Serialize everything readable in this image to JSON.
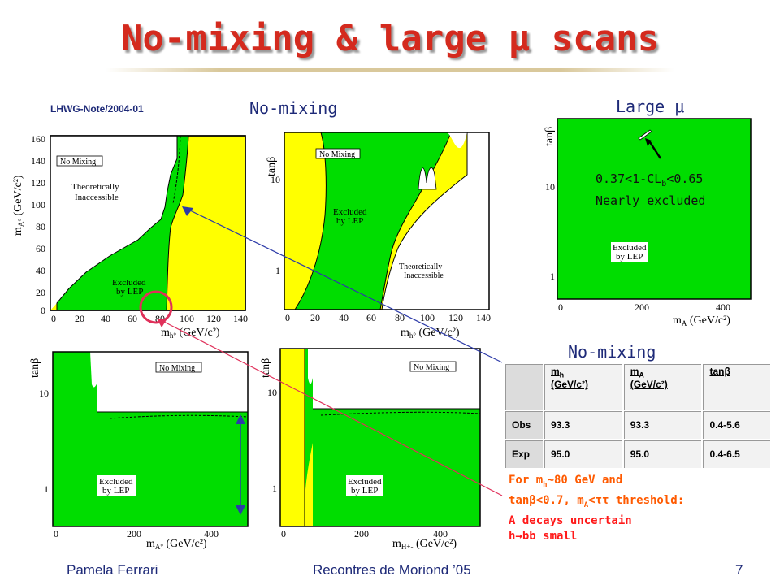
{
  "title": "No-mixing & large μ scans",
  "note": "LHWG-Note/2004-01",
  "section_nomix_top": "No-mixing",
  "section_large_mu": "Large μ",
  "section_nomix_table": "No-mixing",
  "plots": {
    "p1": {
      "label": "No Mixing",
      "region_a": "Theoretically",
      "region_b": "Inaccessible",
      "excl_a": "Excluded",
      "excl_b": "by LEP",
      "y_title": "m",
      "y_sub": "A°",
      "y_unit": " (GeV/c²)",
      "x_title": "m",
      "x_sub": "h°",
      "x_unit": " (GeV/c²)",
      "y_ticks": [
        "160",
        "140",
        "120",
        "100",
        "80",
        "60",
        "40",
        "20",
        "0"
      ],
      "x_ticks": [
        "0",
        "20",
        "40",
        "60",
        "80",
        "100",
        "120",
        "140"
      ]
    },
    "p2": {
      "label": "No Mixing",
      "excl_a": "Excluded",
      "excl_b": "by LEP",
      "region_a": "Theoretically",
      "region_b": "Inaccessible",
      "y_title": "tanβ",
      "x_title": "m",
      "x_sub": "h°",
      "x_unit": " (GeV/c²)",
      "y_ticks": [
        "10",
        "1"
      ],
      "x_ticks": [
        "0",
        "20",
        "40",
        "60",
        "80",
        "100",
        "120",
        "140"
      ]
    },
    "p3": {
      "excl_a": "Excluded",
      "excl_b": "by LEP",
      "y_title": "tanβ",
      "x_title": "m",
      "x_sub": "A",
      "x_unit": " (GeV/c²)",
      "y_ticks": [
        "10",
        "1"
      ],
      "x_ticks": [
        "0",
        "200",
        "400"
      ]
    },
    "p4": {
      "label": "No Mixing",
      "excl_a": "Excluded",
      "excl_b": "by LEP",
      "y_title": "tanβ",
      "x_title": "m",
      "x_sub": "A°",
      "x_unit": " (GeV/c²)",
      "y_ticks": [
        "10",
        "1"
      ],
      "x_ticks": [
        "0",
        "200",
        "400"
      ]
    },
    "p5": {
      "label": "No Mixing",
      "excl_a": "Excluded",
      "excl_b": "by LEP",
      "y_title": "tanβ",
      "x_title": "m",
      "x_sub": "H+-",
      "x_unit": " (GeV/c²)",
      "y_ticks": [
        "10",
        "1"
      ],
      "x_ticks": [
        "0",
        "200",
        "400"
      ]
    }
  },
  "annotation": {
    "line1_pre": "0.37<1-CL",
    "line1_sub": "b",
    "line1_post": "<0.65",
    "line2": "Nearly excluded"
  },
  "table": {
    "headers": [
      {
        "name": "m",
        "sub": "h",
        "unit": "(GeV/c²)"
      },
      {
        "name": "m",
        "sub": "A",
        "unit": "(GeV/c²)"
      },
      {
        "name": "tanβ",
        "sub": "",
        "unit": ""
      }
    ],
    "rows": [
      {
        "label": "Obs",
        "mh": "93.3",
        "mA": "93.3",
        "tanb": "0.4-5.6"
      },
      {
        "label": "Exp",
        "mh": "95.0",
        "mA": "95.0",
        "tanb": "0.4-6.5"
      }
    ]
  },
  "bottom_note": {
    "l1_pre": "For m",
    "l1_sub": "h",
    "l1_post": "~80 GeV and",
    "l2_pre": "tanβ<0.7, m",
    "l2_sub": "A",
    "l2_post": "<ττ threshold:",
    "l3": "A decays uncertain",
    "l4": "h→bb small"
  },
  "footer": {
    "author": "Pamela Ferrari",
    "conference": "Recontres de Moriond ’05",
    "page": "7"
  },
  "colors": {
    "excluded": "#00dd00",
    "allowed": "#ffff00",
    "inaccessible": "#ffffff",
    "title": "#d42a1e",
    "text": "#1e2a78",
    "note": "#ff5a00"
  }
}
